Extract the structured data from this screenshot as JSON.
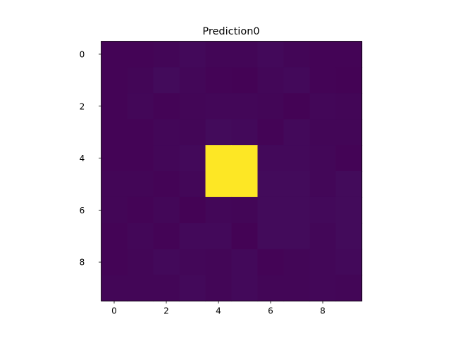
{
  "chart_data": {
    "type": "heatmap",
    "title": "Prediction0",
    "xlabel": "",
    "ylabel": "",
    "colormap": "viridis",
    "xlim": [
      -0.5,
      9.5
    ],
    "ylim": [
      9.5,
      -0.5
    ],
    "x_ticks": [
      0,
      2,
      4,
      6,
      8
    ],
    "y_ticks": [
      0,
      2,
      4,
      6,
      8
    ],
    "grid": false,
    "vmin": 0.0,
    "vmax": 1.0,
    "matrix": [
      [
        0.01,
        0.01,
        0.015,
        0.025,
        0.015,
        0.015,
        0.025,
        0.015,
        0.01,
        0.01
      ],
      [
        0.01,
        0.015,
        0.03,
        0.02,
        0.01,
        0.005,
        0.02,
        0.025,
        0.01,
        0.005
      ],
      [
        0.01,
        0.02,
        0.01,
        0.015,
        0.02,
        0.02,
        0.015,
        0.005,
        0.02,
        0.015
      ],
      [
        0.01,
        0.01,
        0.02,
        0.015,
        0.03,
        0.025,
        0.01,
        0.025,
        0.015,
        0.015
      ],
      [
        0.01,
        0.01,
        0.02,
        0.025,
        1.0,
        1.0,
        0.025,
        0.025,
        0.02,
        0.01
      ],
      [
        0.015,
        0.015,
        0.01,
        0.02,
        1.0,
        1.0,
        0.03,
        0.03,
        0.02,
        0.03
      ],
      [
        0.015,
        0.01,
        0.02,
        0.005,
        0.02,
        0.015,
        0.03,
        0.03,
        0.025,
        0.03
      ],
      [
        0.01,
        0.02,
        0.01,
        0.025,
        0.025,
        0.005,
        0.03,
        0.03,
        0.02,
        0.03
      ],
      [
        0.01,
        0.015,
        0.025,
        0.02,
        0.015,
        0.025,
        0.01,
        0.015,
        0.02,
        0.025
      ],
      [
        0.015,
        0.015,
        0.015,
        0.025,
        0.015,
        0.025,
        0.015,
        0.015,
        0.02,
        0.015
      ]
    ]
  }
}
